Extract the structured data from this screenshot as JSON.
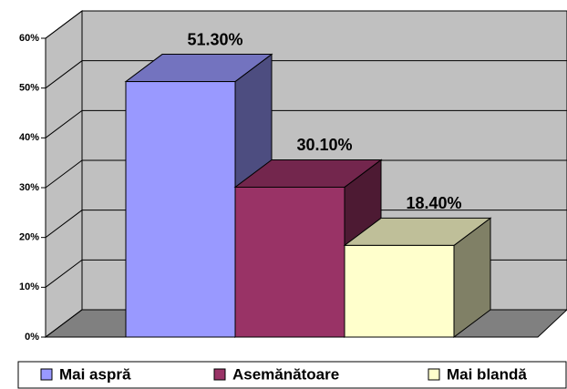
{
  "chart_data": {
    "type": "bar",
    "categories": [
      "Mai aspră",
      "Asemănătoare",
      "Mai blandă"
    ],
    "values": [
      51.3,
      30.1,
      18.4
    ],
    "value_labels": [
      "51.30%",
      "30.10%",
      "18.40%"
    ],
    "colors": [
      "#9999ff",
      "#993366",
      "#ffffcc"
    ],
    "ylim": [
      0,
      60
    ],
    "yticks": [
      {
        "value": 0,
        "label": "0%"
      },
      {
        "value": 10,
        "label": "10%"
      },
      {
        "value": 20,
        "label": "20%"
      },
      {
        "value": 30,
        "label": "30%"
      },
      {
        "value": 40,
        "label": "40%"
      },
      {
        "value": 50,
        "label": "50%"
      },
      {
        "value": 60,
        "label": "60%"
      }
    ],
    "grid": true,
    "legend": "bottom"
  }
}
